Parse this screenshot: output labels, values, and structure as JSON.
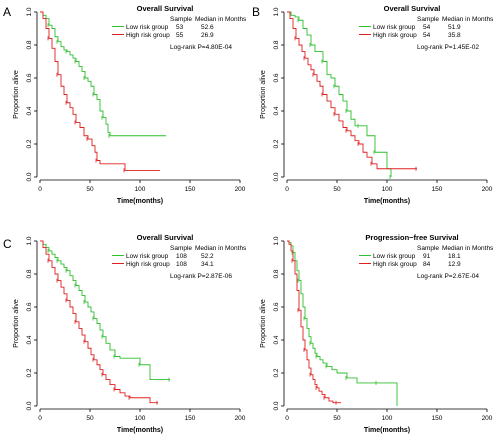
{
  "chart_data": [
    {
      "type": "line",
      "panel_letter": "A",
      "title": "Overall Survival",
      "xlabel": "Time(months)",
      "ylabel": "Proportion alive",
      "xlim": [
        0,
        200
      ],
      "ylim": [
        0,
        1
      ],
      "xticks": [
        "0",
        "50",
        "100",
        "150",
        "200"
      ],
      "yticks": [
        "0.0",
        "0.2",
        "0.4",
        "0.6",
        "0.8",
        "1.0"
      ],
      "legend_headers": [
        "Sample",
        "Median in Months"
      ],
      "pvalue": "Log-rank P=4.80E-04",
      "series": [
        {
          "name": "Low risk group",
          "color": "#2fbf2f",
          "sample": "53",
          "median": "52.6",
          "x": [
            0,
            3,
            6,
            9,
            12,
            15,
            18,
            21,
            24,
            27,
            30,
            33,
            36,
            39,
            42,
            45,
            48,
            51,
            54,
            57,
            60,
            63,
            66,
            68,
            70,
            126
          ],
          "y": [
            1.0,
            0.98,
            0.96,
            0.92,
            0.9,
            0.85,
            0.82,
            0.79,
            0.77,
            0.76,
            0.74,
            0.72,
            0.7,
            0.67,
            0.64,
            0.6,
            0.58,
            0.55,
            0.5,
            0.47,
            0.4,
            0.36,
            0.32,
            0.27,
            0.25,
            0.25
          ]
        },
        {
          "name": "High risk group",
          "color": "#e02020",
          "sample": "55",
          "median": "26.9",
          "x": [
            0,
            3,
            6,
            9,
            12,
            15,
            18,
            21,
            24,
            27,
            30,
            33,
            36,
            40,
            44,
            48,
            52,
            55,
            57,
            60,
            70,
            85,
            120
          ],
          "y": [
            1.0,
            0.96,
            0.9,
            0.84,
            0.78,
            0.7,
            0.62,
            0.55,
            0.5,
            0.45,
            0.42,
            0.38,
            0.33,
            0.3,
            0.25,
            0.23,
            0.19,
            0.15,
            0.1,
            0.08,
            0.08,
            0.04,
            0.04
          ]
        }
      ]
    },
    {
      "type": "line",
      "panel_letter": "B",
      "title": "Overall Survival",
      "xlabel": "Time(months)",
      "ylabel": "Proportion alive",
      "xlim": [
        0,
        200
      ],
      "ylim": [
        0,
        1
      ],
      "xticks": [
        "0",
        "50",
        "100",
        "150",
        "200"
      ],
      "yticks": [
        "0.0",
        "0.2",
        "0.4",
        "0.6",
        "0.8",
        "1.0"
      ],
      "legend_headers": [
        "Sample",
        "Median in Months"
      ],
      "pvalue": "Log-rank P=1.45E-02",
      "series": [
        {
          "name": "Low risk group",
          "color": "#2fbf2f",
          "sample": "54",
          "median": "51.9",
          "x": [
            0,
            4,
            8,
            12,
            16,
            20,
            24,
            28,
            32,
            36,
            40,
            44,
            48,
            52,
            56,
            60,
            64,
            68,
            72,
            76,
            80,
            88,
            95,
            100,
            104
          ],
          "y": [
            1.0,
            0.98,
            0.97,
            0.95,
            0.9,
            0.86,
            0.8,
            0.76,
            0.76,
            0.7,
            0.62,
            0.6,
            0.55,
            0.5,
            0.46,
            0.4,
            0.35,
            0.31,
            0.31,
            0.31,
            0.25,
            0.15,
            0.15,
            0.05,
            0.0
          ]
        },
        {
          "name": "High risk group",
          "color": "#e02020",
          "sample": "54",
          "median": "35.8",
          "x": [
            0,
            3,
            6,
            9,
            12,
            15,
            18,
            21,
            24,
            27,
            30,
            33,
            36,
            40,
            44,
            48,
            52,
            56,
            60,
            64,
            68,
            72,
            76,
            80,
            85,
            90,
            95,
            130
          ],
          "y": [
            1.0,
            0.96,
            0.9,
            0.84,
            0.8,
            0.76,
            0.72,
            0.68,
            0.65,
            0.62,
            0.58,
            0.55,
            0.5,
            0.46,
            0.42,
            0.38,
            0.34,
            0.3,
            0.28,
            0.25,
            0.22,
            0.2,
            0.15,
            0.12,
            0.08,
            0.05,
            0.05,
            0.05
          ]
        }
      ]
    },
    {
      "type": "line",
      "panel_letter": "C",
      "title": "Overall Survival",
      "xlabel": "Time(months)",
      "ylabel": "Proportion alive",
      "xlim": [
        0,
        200
      ],
      "ylim": [
        0,
        1
      ],
      "xticks": [
        "0",
        "50",
        "100",
        "150",
        "200"
      ],
      "yticks": [
        "0.0",
        "0.2",
        "0.4",
        "0.6",
        "0.8",
        "1.0"
      ],
      "legend_headers": [
        "Sample",
        "Median in Months"
      ],
      "pvalue": "Log-rank P=2.87E-06",
      "series": [
        {
          "name": "Low risk group",
          "color": "#2fbf2f",
          "sample": "108",
          "median": "52.2",
          "x": [
            0,
            3,
            6,
            9,
            12,
            15,
            18,
            21,
            24,
            27,
            30,
            33,
            36,
            39,
            42,
            45,
            48,
            51,
            54,
            57,
            60,
            63,
            66,
            70,
            75,
            80,
            90,
            100,
            110,
            120,
            130
          ],
          "y": [
            1.0,
            0.98,
            0.96,
            0.94,
            0.92,
            0.9,
            0.88,
            0.86,
            0.84,
            0.82,
            0.79,
            0.76,
            0.73,
            0.7,
            0.67,
            0.63,
            0.6,
            0.57,
            0.53,
            0.5,
            0.46,
            0.42,
            0.38,
            0.34,
            0.3,
            0.29,
            0.29,
            0.25,
            0.16,
            0.16,
            0.16
          ]
        },
        {
          "name": "High risk group",
          "color": "#e02020",
          "sample": "108",
          "median": "34.1",
          "x": [
            0,
            3,
            6,
            9,
            12,
            15,
            18,
            21,
            24,
            27,
            30,
            33,
            36,
            39,
            42,
            45,
            48,
            51,
            54,
            57,
            60,
            63,
            66,
            70,
            75,
            80,
            85,
            90,
            100,
            110,
            118
          ],
          "y": [
            1.0,
            0.96,
            0.92,
            0.88,
            0.84,
            0.8,
            0.76,
            0.72,
            0.68,
            0.64,
            0.6,
            0.56,
            0.51,
            0.47,
            0.43,
            0.39,
            0.35,
            0.31,
            0.28,
            0.25,
            0.22,
            0.19,
            0.16,
            0.13,
            0.1,
            0.08,
            0.06,
            0.05,
            0.05,
            0.02,
            0.02
          ]
        }
      ]
    },
    {
      "type": "line",
      "panel_letter": "",
      "title": "Progression−free Survival",
      "xlabel": "Time(months)",
      "ylabel": "Proportion alive",
      "xlim": [
        0,
        200
      ],
      "ylim": [
        0,
        1
      ],
      "xticks": [
        "0",
        "50",
        "100",
        "150",
        "200"
      ],
      "yticks": [
        "0.0",
        "0.2",
        "0.4",
        "0.6",
        "0.8",
        "1.0"
      ],
      "legend_headers": [
        "Sample",
        "Median in Months"
      ],
      "pvalue": "Log-rank P=2.67E-04",
      "series": [
        {
          "name": "Low risk group",
          "color": "#2fbf2f",
          "sample": "91",
          "median": "18.1",
          "x": [
            0,
            2,
            4,
            6,
            8,
            10,
            12,
            14,
            16,
            18,
            20,
            22,
            24,
            26,
            28,
            30,
            33,
            36,
            40,
            45,
            50,
            60,
            70,
            80,
            90,
            100,
            110
          ],
          "y": [
            1.0,
            0.99,
            0.97,
            0.93,
            0.88,
            0.82,
            0.76,
            0.68,
            0.6,
            0.53,
            0.47,
            0.42,
            0.38,
            0.35,
            0.32,
            0.3,
            0.28,
            0.26,
            0.24,
            0.22,
            0.2,
            0.17,
            0.14,
            0.14,
            0.14,
            0.14,
            0.0
          ]
        },
        {
          "name": "High risk group",
          "color": "#e02020",
          "sample": "84",
          "median": "12.9",
          "x": [
            0,
            2,
            4,
            6,
            8,
            10,
            12,
            14,
            16,
            18,
            20,
            22,
            24,
            26,
            28,
            30,
            32,
            35,
            38,
            42,
            46,
            50,
            54
          ],
          "y": [
            1.0,
            0.98,
            0.94,
            0.88,
            0.8,
            0.7,
            0.58,
            0.48,
            0.4,
            0.34,
            0.28,
            0.23,
            0.19,
            0.16,
            0.13,
            0.11,
            0.09,
            0.07,
            0.05,
            0.03,
            0.02,
            0.02,
            0.02
          ]
        }
      ]
    }
  ]
}
